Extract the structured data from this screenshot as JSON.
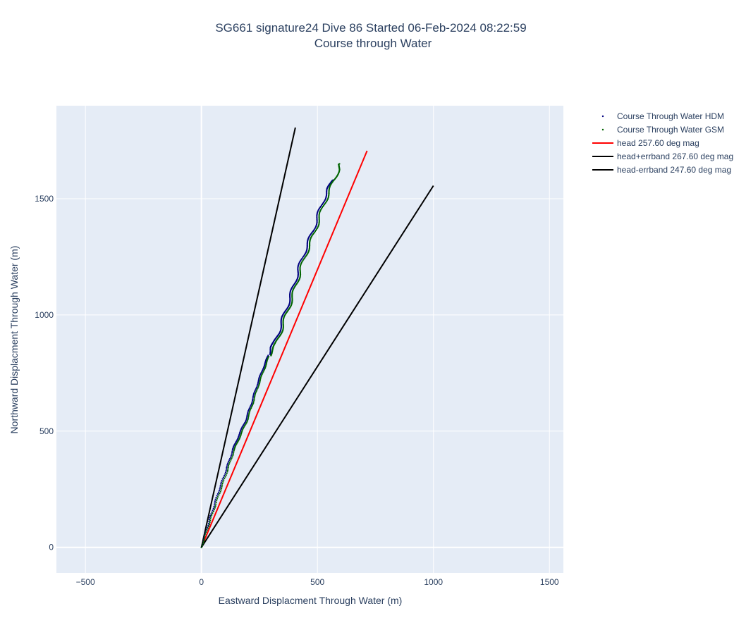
{
  "chart_data": {
    "type": "scatter",
    "title": "SG661 signature24 Dive 86 Started 06-Feb-2024 08:22:59",
    "subtitle": "Course through Water",
    "xlabel": "Eastward Displacment Through Water (m)",
    "ylabel": "Northward Displacment Through Water (m)",
    "xlim": [
      -625,
      1560
    ],
    "ylim": [
      -110,
      1900
    ],
    "xticks": [
      -500,
      0,
      500,
      1000,
      1500
    ],
    "xtick_labels": [
      "−500",
      "0",
      "500",
      "1000",
      "1500"
    ],
    "yticks": [
      0,
      500,
      1000,
      1500
    ],
    "ytick_labels": [
      "0",
      "500",
      "1000",
      "1500"
    ],
    "grid": true,
    "legend_position": "right",
    "colors": {
      "plot_bg": "#e5ecf6",
      "grid": "#ffffff",
      "text": "#2a3f5f"
    },
    "series": [
      {
        "name": "Course Through Water HDM",
        "kind": "markers",
        "color": "#000080",
        "x": [
          0,
          35,
          70,
          105,
          135,
          160,
          190,
          215,
          240,
          265,
          290,
          302,
          315,
          330,
          345,
          360,
          375,
          390,
          405,
          420,
          440,
          460,
          480,
          500,
          520,
          545,
          563,
          568
        ],
        "y": [
          0,
          120,
          230,
          330,
          420,
          480,
          545,
          620,
          700,
          770,
          830,
          860,
          880,
          920,
          965,
          1010,
          1055,
          1100,
          1150,
          1200,
          1260,
          1310,
          1360,
          1420,
          1480,
          1540,
          1570,
          1580
        ]
      },
      {
        "name": "Course Through Water GSM",
        "kind": "markers",
        "color": "#006400",
        "x": [
          0,
          38,
          75,
          110,
          140,
          165,
          195,
          220,
          245,
          270,
          293,
          310,
          325,
          338,
          352,
          368,
          383,
          398,
          413,
          428,
          448,
          468,
          488,
          508,
          528,
          553,
          575,
          590,
          595
        ],
        "y": [
          0,
          115,
          225,
          325,
          415,
          475,
          540,
          615,
          695,
          765,
          825,
          855,
          880,
          915,
          960,
          1005,
          1050,
          1095,
          1145,
          1195,
          1255,
          1305,
          1355,
          1415,
          1475,
          1535,
          1585,
          1625,
          1650
        ]
      },
      {
        "name": "head 257.60 deg mag",
        "kind": "line",
        "color": "#ff0000",
        "x": [
          0,
          714
        ],
        "y": [
          0,
          1706
        ]
      },
      {
        "name": "head+errband 267.60 deg mag",
        "kind": "line",
        "color": "#000000",
        "x": [
          0,
          405
        ],
        "y": [
          0,
          1806
        ]
      },
      {
        "name": "head-errband 247.60 deg mag",
        "kind": "line",
        "color": "#000000",
        "x": [
          0,
          1000
        ],
        "y": [
          0,
          1556
        ]
      }
    ]
  }
}
